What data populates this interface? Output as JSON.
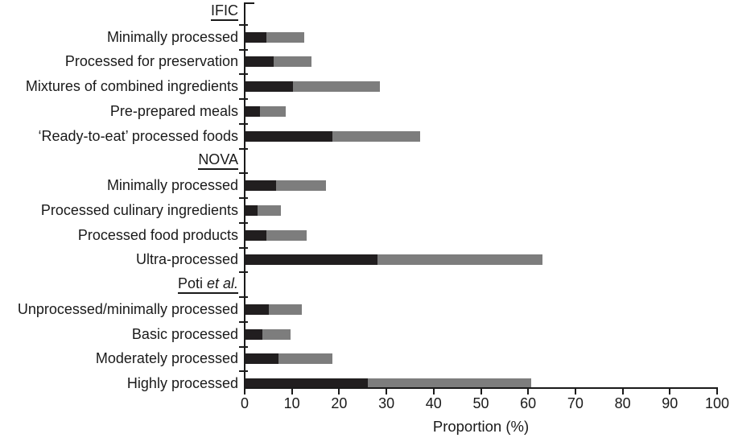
{
  "chart_data": {
    "type": "bar",
    "orientation": "horizontal",
    "stacked": true,
    "title": "",
    "xlabel": "Proportion (%)",
    "xlim": [
      0,
      100
    ],
    "xticks": [
      0,
      10,
      20,
      30,
      40,
      50,
      60,
      70,
      80,
      90,
      100
    ],
    "grid": false,
    "legend": "none",
    "series": [
      {
        "name": "dark-segment",
        "color": "#211e1f"
      },
      {
        "name": "gray-segment",
        "color": "#7d7d7d"
      }
    ],
    "axis_color": "#1a1a1a",
    "groups": [
      {
        "header": "IFIC",
        "header_italic": "",
        "bars": [
          {
            "label": "Minimally processed",
            "dark": 4.5,
            "gray": 8,
            "total": 12.5
          },
          {
            "label": "Processed for preservation",
            "dark": 6,
            "gray": 8,
            "total": 14
          },
          {
            "label": "Mixtures of combined ingredients",
            "dark": 10,
            "gray": 18.5,
            "total": 28.5
          },
          {
            "label": "Pre-prepared meals",
            "dark": 3,
            "gray": 5.5,
            "total": 8.5
          },
          {
            "label": "‘Ready-to-eat’ processed foods",
            "dark": 18.5,
            "gray": 18.5,
            "total": 37
          }
        ]
      },
      {
        "header": "NOVA",
        "header_italic": "",
        "bars": [
          {
            "label": "Minimally processed",
            "dark": 6.5,
            "gray": 10.5,
            "total": 17
          },
          {
            "label": "Processed culinary ingredients",
            "dark": 2.5,
            "gray": 5,
            "total": 7.5
          },
          {
            "label": "Processed food products",
            "dark": 4.5,
            "gray": 8.5,
            "total": 13
          },
          {
            "label": "Ultra-processed",
            "dark": 28,
            "gray": 35,
            "total": 63
          }
        ]
      },
      {
        "header": "Poti ",
        "header_italic": "et al.",
        "bars": [
          {
            "label": "Unprocessed/minimally processed",
            "dark": 5,
            "gray": 7,
            "total": 12
          },
          {
            "label": "Basic processed",
            "dark": 3.5,
            "gray": 6,
            "total": 9.5
          },
          {
            "label": "Moderately processed",
            "dark": 7,
            "gray": 11.5,
            "total": 18.5
          },
          {
            "label": "Highly processed",
            "dark": 26,
            "gray": 34.5,
            "total": 60.5
          }
        ]
      }
    ]
  }
}
